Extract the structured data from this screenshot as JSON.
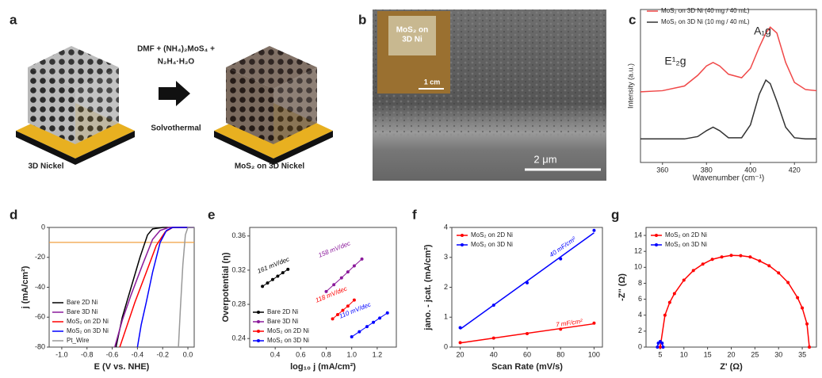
{
  "panels": [
    {
      "letter": "a",
      "labels": [
        "3D Nickel",
        "DMF + (NH₄)₂MoS₄ +",
        "N₂H₄·H₂O",
        "Solvothermal",
        "MoS₂ on 3D Nickel"
      ]
    },
    {
      "letter": "b",
      "labels": [
        "MoS₂ on",
        "3D Ni",
        "1 cm",
        "2 μm"
      ]
    }
  ],
  "chart_data": [
    {
      "letter": "c",
      "type": "line",
      "x_label": "Wavenumber (cm⁻¹)",
      "y_label": "Intensity (a.u.)",
      "x": [
        350,
        360,
        370,
        376,
        380,
        383,
        386,
        390,
        396,
        400,
        404,
        407,
        409,
        412,
        416,
        420,
        425,
        430
      ],
      "series": [
        {
          "name": "MoS₂ on 3D Ni (40 mg / 40 mL)",
          "color": "#f04848",
          "values": [
            0.6,
            0.61,
            0.65,
            0.74,
            0.82,
            0.85,
            0.82,
            0.75,
            0.72,
            0.8,
            0.98,
            1.1,
            1.15,
            1.1,
            0.85,
            0.68,
            0.62,
            0.61
          ]
        },
        {
          "name": "MoS₂ on 3D Ni (10 mg / 40 mL)",
          "color": "#333333",
          "values": [
            0.2,
            0.2,
            0.2,
            0.22,
            0.27,
            0.3,
            0.27,
            0.21,
            0.21,
            0.32,
            0.58,
            0.7,
            0.67,
            0.52,
            0.3,
            0.21,
            0.2,
            0.2
          ]
        }
      ],
      "xlim": [
        350,
        430
      ],
      "xticks": [
        360,
        380,
        400,
        420
      ],
      "ylim": [
        0,
        1.3
      ],
      "legend": "top",
      "annotations": [
        "E¹₂g",
        "A₁g"
      ]
    },
    {
      "letter": "d",
      "type": "line",
      "x_label": "E (V vs. NHE)",
      "y_label": "j (mA/cm²)",
      "series": [
        {
          "name": "Bare 2D Ni",
          "color": "#000000",
          "x": [
            0.05,
            -0.2,
            -0.28,
            -0.32,
            -0.38,
            -0.45,
            -0.52,
            -0.57
          ],
          "values": [
            0,
            0,
            -1,
            -5,
            -20,
            -40,
            -60,
            -80
          ]
        },
        {
          "name": "Bare 3D Ni",
          "color": "#8b1a9b",
          "x": [
            0.05,
            -0.15,
            -0.22,
            -0.28,
            -0.36,
            -0.45,
            -0.52,
            -0.58
          ],
          "values": [
            0,
            0,
            -2,
            -8,
            -25,
            -45,
            -62,
            -80
          ]
        },
        {
          "name": "MoS₂ on 2D Ni",
          "color": "#ff0000",
          "x": [
            0.05,
            -0.12,
            -0.18,
            -0.25,
            -0.33,
            -0.42,
            -0.48,
            -0.54
          ],
          "values": [
            0,
            0,
            -3,
            -12,
            -30,
            -50,
            -65,
            -80
          ]
        },
        {
          "name": "MoS₂ on 3D Ni",
          "color": "#0000ff",
          "x": [
            0.05,
            -0.12,
            -0.17,
            -0.22,
            -0.28,
            -0.33,
            -0.37,
            -0.4
          ],
          "values": [
            0,
            0,
            -2,
            -10,
            -30,
            -50,
            -65,
            -80
          ]
        },
        {
          "name": "Pt_Wire",
          "color": "#999999",
          "x": [
            0.05,
            0,
            -0.02,
            -0.04,
            -0.06,
            -0.075
          ],
          "values": [
            0,
            0,
            -5,
            -25,
            -55,
            -80
          ]
        }
      ],
      "reference_line": -10,
      "reference_color": "#f0a040",
      "xlim": [
        -1.1,
        0.05
      ],
      "xticks": [
        {
          "value": -1,
          "label": "-1.0"
        },
        -0.8,
        -0.6,
        -0.4,
        -0.2,
        {
          "value": 0,
          "label": "0.0"
        }
      ],
      "ylim": [
        -80,
        0
      ],
      "yticks": [
        0,
        -20,
        -40,
        -60,
        -80
      ],
      "legend": "lower left"
    },
    {
      "letter": "e",
      "type": "scatter",
      "x_label": "log₁₀ j (mA/cm²)",
      "y_label": "Overpotential (η)",
      "series": [
        {
          "name": "Bare 2D Ni",
          "color": "#000000",
          "x": [
            0.3,
            0.34,
            0.38,
            0.42,
            0.46,
            0.5
          ],
          "values": [
            0.301,
            0.305,
            0.309,
            0.313,
            0.317,
            0.321
          ]
        },
        {
          "name": "Bare 3D Ni",
          "color": "#8b1a9b",
          "x": [
            0.8,
            0.86,
            0.92,
            0.97,
            1.02,
            1.08
          ],
          "values": [
            0.295,
            0.303,
            0.311,
            0.318,
            0.325,
            0.333
          ]
        },
        {
          "name": "MoS₂ on 2D Ni",
          "color": "#ff0000",
          "x": [
            0.85,
            0.89,
            0.93,
            0.97,
            1.02
          ],
          "values": [
            0.263,
            0.268,
            0.273,
            0.278,
            0.285
          ]
        },
        {
          "name": "MoS₂ on 3D Ni",
          "color": "#0000ff",
          "x": [
            1.0,
            1.06,
            1.12,
            1.17,
            1.22,
            1.28
          ],
          "values": [
            0.242,
            0.248,
            0.254,
            0.259,
            0.264,
            0.27
          ]
        }
      ],
      "xlim": [
        0.2,
        1.35
      ],
      "xticks": [
        0.4,
        0.6,
        0.8,
        {
          "value": 1,
          "label": "1.0"
        },
        1.2
      ],
      "ylim": [
        0.23,
        0.37
      ],
      "yticks": [
        0.24,
        0.28,
        0.32,
        0.36
      ],
      "legend": "lower left",
      "annotations": [
        "161 mV/dec",
        "158 mV/dec",
        "118 mV/dec",
        "110 mV/dec"
      ]
    },
    {
      "letter": "f",
      "type": "scatter",
      "fit": true,
      "x_label": "Scan Rate (mV/s)",
      "y_label": "jano. - jcat. (mA/cm²)",
      "x": [
        20,
        40,
        60,
        80,
        100
      ],
      "series": [
        {
          "name": "MoS₂ on 2D Ni",
          "color": "#ff0000",
          "values": [
            0.15,
            0.3,
            0.45,
            0.6,
            0.8
          ]
        },
        {
          "name": "MoS₂ on 3D Ni",
          "color": "#0000ff",
          "values": [
            0.65,
            1.4,
            2.15,
            2.95,
            3.9
          ]
        }
      ],
      "xlim": [
        15,
        105
      ],
      "xticks": [
        20,
        40,
        60,
        80,
        100
      ],
      "ylim": [
        0,
        4
      ],
      "yticks": [
        0,
        1,
        2,
        3,
        4
      ],
      "legend": "upper left",
      "annotations": [
        "40 mF/cm²",
        "7 mF/cm²"
      ]
    },
    {
      "letter": "g",
      "type": "line",
      "markers": true,
      "x_label": "Z' (Ω)",
      "y_label": "-Z'' (Ω)",
      "series": [
        {
          "name": "MoS₂ on 2D Ni",
          "color": "#ff0000",
          "x": [
            5,
            6,
            7,
            8,
            10,
            12,
            14,
            16,
            18,
            20,
            22,
            24,
            26,
            28,
            30,
            32,
            34,
            35,
            36,
            36.5
          ],
          "values": [
            0,
            4,
            5.6,
            6.7,
            8.4,
            9.6,
            10.4,
            11,
            11.3,
            11.5,
            11.46,
            11.3,
            10.8,
            10.2,
            9.3,
            8.1,
            6.2,
            4.9,
            2.9,
            0
          ]
        },
        {
          "name": "MoS₂ on 3D Ni",
          "color": "#0000ff",
          "x": [
            4.4,
            4.6,
            5,
            5.4,
            5.6
          ],
          "values": [
            0,
            0.5,
            0.7,
            0.5,
            0
          ]
        }
      ],
      "xlim": [
        2,
        38
      ],
      "xticks": [
        5,
        10,
        15,
        20,
        25,
        30,
        35
      ],
      "ylim": [
        0,
        15
      ],
      "yticks": [
        0,
        2,
        4,
        6,
        8,
        10,
        12,
        14
      ],
      "legend": "upper left"
    }
  ]
}
